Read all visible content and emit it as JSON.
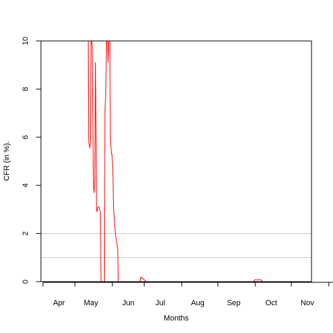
{
  "chart_data": {
    "type": "line",
    "title": "",
    "xlabel": "Months",
    "ylabel": "CFR (in %).",
    "xlim_day": [
      0,
      237
    ],
    "ylim": [
      0,
      10
    ],
    "yticks": [
      0,
      2,
      4,
      6,
      8,
      10
    ],
    "month_ticks": [
      {
        "label": "Apr",
        "day": 0
      },
      {
        "label": "May",
        "day": 23
      },
      {
        "label": "Jun",
        "day": 50
      },
      {
        "label": "Jul",
        "day": 73
      },
      {
        "label": "Aug",
        "day": 100
      },
      {
        "label": "Sep",
        "day": 126
      },
      {
        "label": "Oct",
        "day": 153
      },
      {
        "label": "Nov",
        "day": 179
      }
    ],
    "tick_marks_day": [
      0,
      23,
      50,
      73,
      100,
      126,
      153,
      179,
      206,
      232
    ],
    "reference_lines": [
      1,
      2
    ],
    "grid": false,
    "series": [
      {
        "color": "#ff0000",
        "points": [
          [
            32.6,
            10
          ],
          [
            32.9,
            5.8
          ],
          [
            33.3,
            5.7
          ],
          [
            33.7,
            5.55
          ],
          [
            34.2,
            5.8
          ],
          [
            34.6,
            10
          ],
          [
            35.0,
            10
          ],
          [
            35.5,
            9.8
          ],
          [
            36.3,
            4.0
          ],
          [
            36.8,
            3.7
          ],
          [
            37.3,
            4.2
          ],
          [
            37.8,
            9.1
          ],
          [
            38.6,
            3.0
          ],
          [
            39.0,
            2.9
          ],
          [
            39.5,
            3.1
          ],
          [
            40.5,
            3.1
          ],
          [
            41.2,
            2.9
          ],
          [
            41.9,
            0
          ],
          [
            44.2,
            0
          ],
          [
            44.6,
            7.1
          ],
          [
            45.2,
            7.7
          ],
          [
            45.8,
            10
          ],
          [
            46.4,
            10
          ],
          [
            46.9,
            9.1
          ],
          [
            47.3,
            10
          ],
          [
            48.2,
            10
          ],
          [
            48.6,
            5.9
          ],
          [
            49.3,
            5.3
          ],
          [
            49.7,
            5.3
          ],
          [
            50.3,
            4.7
          ],
          [
            50.8,
            3.1
          ],
          [
            51.7,
            2.3
          ],
          [
            52.4,
            1.9
          ],
          [
            52.9,
            1.7
          ],
          [
            53.4,
            1.5
          ],
          [
            53.9,
            1.35
          ],
          [
            54.2,
            0
          ],
          [
            69.8,
            0
          ],
          [
            70.6,
            0.2
          ],
          [
            72.5,
            0.1
          ],
          [
            73.5,
            0.05
          ],
          [
            74.3,
            0
          ],
          [
            151.7,
            0
          ],
          [
            152.7,
            0.08
          ],
          [
            157.3,
            0.08
          ],
          [
            158.0,
            0
          ]
        ]
      }
    ]
  }
}
